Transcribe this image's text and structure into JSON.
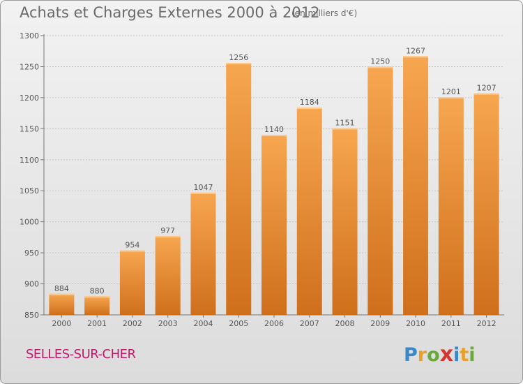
{
  "chart_data": {
    "type": "bar",
    "title": "Achats et Charges Externes 2000 à 2012",
    "subtitle": "(en milliers d'€)",
    "categories": [
      "2000",
      "2001",
      "2002",
      "2003",
      "2004",
      "2005",
      "2006",
      "2007",
      "2008",
      "2009",
      "2010",
      "2011",
      "2012"
    ],
    "values": [
      884,
      880,
      954,
      977,
      1047,
      1256,
      1140,
      1184,
      1151,
      1250,
      1267,
      1201,
      1207
    ],
    "ylim": [
      850,
      1300
    ],
    "yticks": [
      850,
      900,
      950,
      1000,
      1050,
      1100,
      1150,
      1200,
      1250,
      1300
    ],
    "xlabel": "",
    "ylabel": "",
    "grid": true,
    "colors": {
      "bar_light": "#f7a650",
      "bar_dark": "#cf6f1b",
      "axis": "#777777"
    }
  },
  "location": "SELLES-SUR-CHER",
  "logo": {
    "letters": [
      "P",
      "r",
      "o",
      "x",
      "i",
      "t",
      "i"
    ],
    "colors": [
      "#3b87c7",
      "#e8a02a",
      "#6aa83a",
      "#d6342e",
      "#3b87c7",
      "#e8a02a",
      "#6aa83a"
    ]
  }
}
